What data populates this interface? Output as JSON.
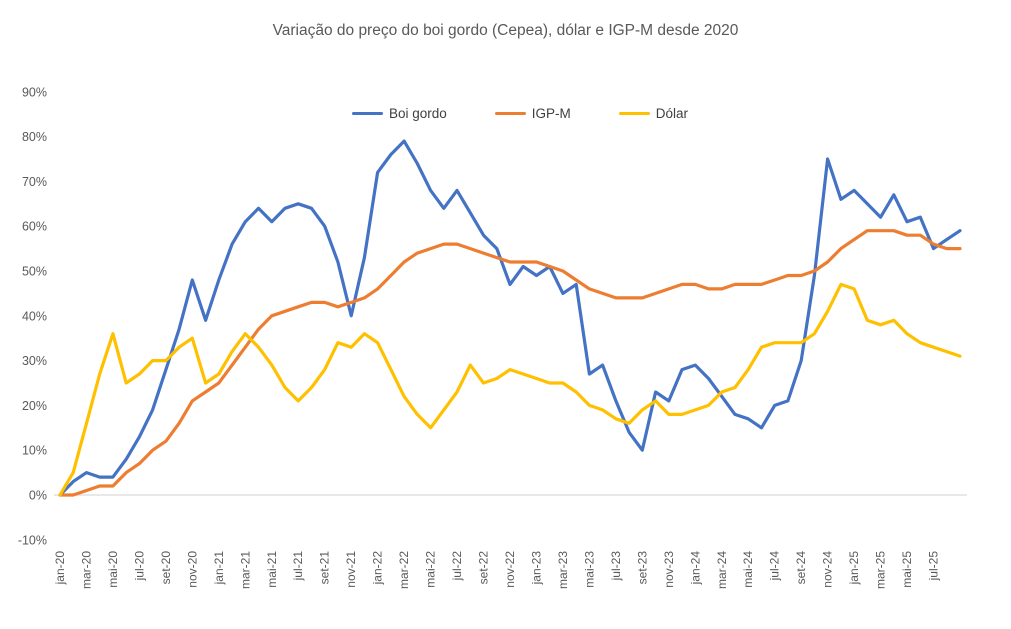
{
  "title": "Variação do preço do boi gordo (Cepea), dólar e IGP-M desde 2020",
  "colors": {
    "boi_gordo": "#4472C4",
    "igpm": "#ED7D31",
    "dolar": "#FFC000",
    "axis_line": "#D9D9D9",
    "tick_text": "#595959",
    "legend_text": "#404040",
    "background": "#FFFFFF"
  },
  "legend": {
    "items": [
      {
        "label": "Boi gordo"
      },
      {
        "label": "IGP-M"
      },
      {
        "label": "Dólar"
      }
    ]
  },
  "chart_data": {
    "type": "line",
    "title": "Variação do preço do boi gordo (Cepea), dólar e IGP-M desde 2020",
    "xlabel": "",
    "ylabel": "",
    "ylim": [
      -10,
      90
    ],
    "grid": "zero-axis-only",
    "legend_position": "top-center",
    "yticks": [
      {
        "label": "90%",
        "value": 90
      },
      {
        "label": "80%",
        "value": 80
      },
      {
        "label": "70%",
        "value": 70
      },
      {
        "label": "60%",
        "value": 60
      },
      {
        "label": "50%",
        "value": 50
      },
      {
        "label": "40%",
        "value": 40
      },
      {
        "label": "30%",
        "value": 30
      },
      {
        "label": "20%",
        "value": 20
      },
      {
        "label": "10%",
        "value": 10
      },
      {
        "label": "0%",
        "value": 0
      },
      {
        "label": "-10%",
        "value": -10
      }
    ],
    "x": [
      "jan-20",
      "fev-20",
      "mar-20",
      "abr-20",
      "mai-20",
      "jun-20",
      "jul-20",
      "ago-20",
      "set-20",
      "out-20",
      "nov-20",
      "dez-20",
      "jan-21",
      "fev-21",
      "mar-21",
      "abr-21",
      "mai-21",
      "jun-21",
      "jul-21",
      "ago-21",
      "set-21",
      "out-21",
      "nov-21",
      "dez-21",
      "jan-22",
      "fev-22",
      "mar-22",
      "abr-22",
      "mai-22",
      "jun-22",
      "jul-22",
      "ago-22",
      "set-22",
      "out-22",
      "nov-22",
      "dez-22",
      "jan-23",
      "fev-23",
      "mar-23",
      "abr-23",
      "mai-23",
      "jun-23",
      "jul-23",
      "ago-23",
      "set-23",
      "out-23",
      "nov-23",
      "dez-23",
      "jan-24",
      "fev-24",
      "mar-24",
      "abr-24",
      "mai-24",
      "jun-24",
      "jul-24",
      "ago-24",
      "set-24",
      "out-24",
      "nov-24",
      "dez-24",
      "jan-25",
      "fev-25",
      "mar-25",
      "abr-25",
      "mai-25",
      "jun-25",
      "jul-25",
      "ago-25",
      "set-25"
    ],
    "x_tick_labels": [
      "jan-20",
      "mar-20",
      "mai-20",
      "jul-20",
      "set-20",
      "nov-20",
      "jan-21",
      "mar-21",
      "mai-21",
      "jul-21",
      "set-21",
      "nov-21",
      "jan-22",
      "mar-22",
      "mai-22",
      "jul-22",
      "set-22",
      "nov-22",
      "jan-23",
      "mar-23",
      "mai-23",
      "jul-23",
      "set-23",
      "nov-23",
      "jan-24",
      "mar-24",
      "mai-24",
      "jul-24",
      "set-24",
      "nov-24",
      "jan-25",
      "mar-25",
      "mai-25",
      "jul-25"
    ],
    "series": [
      {
        "name": "Boi gordo",
        "color": "#4472C4",
        "values": [
          0,
          3,
          5,
          4,
          4,
          8,
          13,
          19,
          28,
          37,
          48,
          39,
          48,
          56,
          61,
          64,
          61,
          64,
          65,
          64,
          60,
          52,
          40,
          53,
          72,
          76,
          79,
          74,
          68,
          64,
          68,
          63,
          58,
          55,
          47,
          51,
          49,
          51,
          45,
          47,
          27,
          29,
          21,
          14,
          10,
          23,
          21,
          28,
          29,
          26,
          22,
          18,
          17,
          15,
          20,
          21,
          30,
          49,
          75,
          66,
          68,
          65,
          62,
          67,
          61,
          62,
          55,
          57,
          59
        ]
      },
      {
        "name": "IGP-M",
        "color": "#ED7D31",
        "values": [
          0,
          0,
          1,
          2,
          2,
          5,
          7,
          10,
          12,
          16,
          21,
          23,
          25,
          29,
          33,
          37,
          40,
          41,
          42,
          43,
          43,
          42,
          43,
          44,
          46,
          49,
          52,
          54,
          55,
          56,
          56,
          55,
          54,
          53,
          52,
          52,
          52,
          51,
          50,
          48,
          46,
          45,
          44,
          44,
          44,
          45,
          46,
          47,
          47,
          46,
          46,
          47,
          47,
          47,
          48,
          49,
          49,
          50,
          52,
          55,
          57,
          59,
          59,
          59,
          58,
          58,
          56,
          55,
          55
        ]
      },
      {
        "name": "Dólar",
        "color": "#FFC000",
        "values": [
          0,
          5,
          16,
          27,
          36,
          25,
          27,
          30,
          30,
          33,
          35,
          25,
          27,
          32,
          36,
          33,
          29,
          24,
          21,
          24,
          28,
          34,
          33,
          36,
          34,
          28,
          22,
          18,
          15,
          19,
          23,
          29,
          25,
          26,
          28,
          27,
          26,
          25,
          25,
          23,
          20,
          19,
          17,
          16,
          19,
          21,
          18,
          18,
          19,
          20,
          23,
          24,
          28,
          33,
          34,
          34,
          34,
          36,
          41,
          47,
          46,
          39,
          38,
          39,
          36,
          34,
          33,
          32,
          31
        ]
      }
    ]
  }
}
